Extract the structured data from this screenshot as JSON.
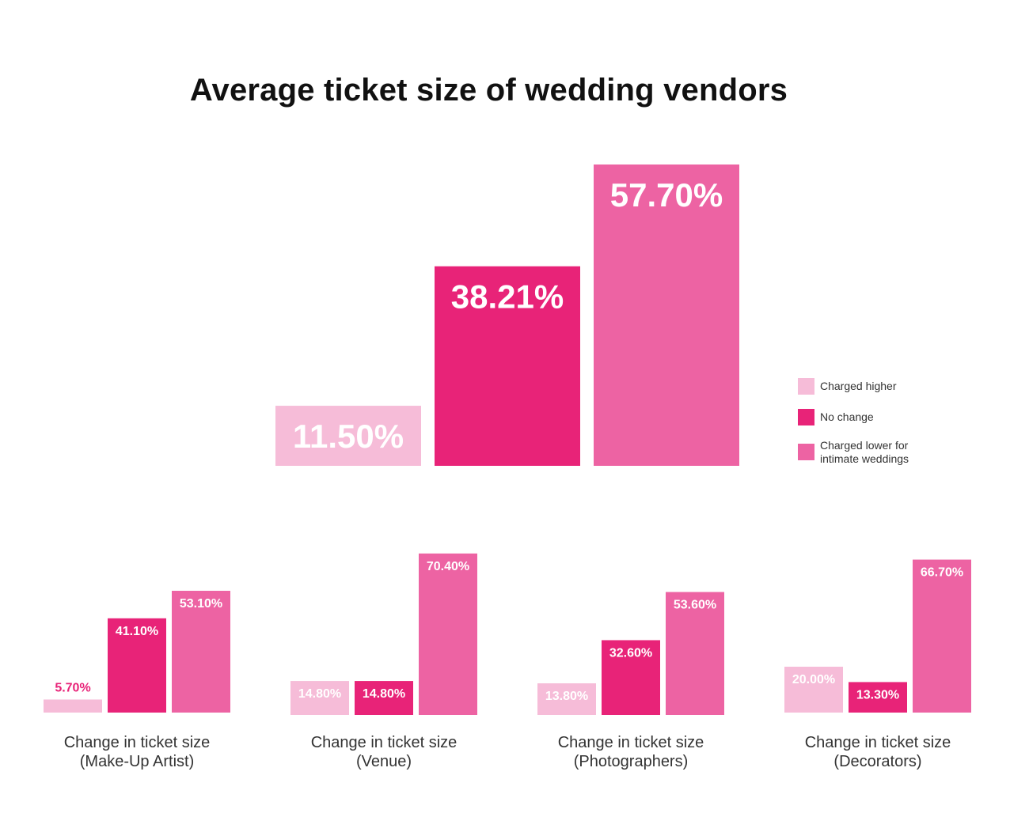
{
  "colors": {
    "charged_higher": "#f6bcd8",
    "no_change": "#e82378",
    "charged_lower": "#ed63a3",
    "label_on_bar": "#ffffff",
    "label_above_bar": "#e82378"
  },
  "chart_data": [
    {
      "type": "bar",
      "id": "overall",
      "title": "Average ticket size of wedding vendors",
      "categories": [
        "Charged higher",
        "No change",
        "Charged lower for intimate weddings"
      ],
      "values": [
        11.5,
        38.21,
        57.7
      ],
      "labels": [
        "11.50%",
        "38.21%",
        "57.70%"
      ],
      "ylim": [
        0,
        57.7
      ],
      "legend": {
        "position": "right",
        "entries": [
          "Charged higher",
          "No change",
          "Charged lower for\nintimate weddings"
        ]
      }
    },
    {
      "type": "bar",
      "id": "makeup",
      "caption": [
        "Change in ticket size",
        "(Make-Up Artist)"
      ],
      "categories": [
        "Charged higher",
        "No change",
        "Charged lower for intimate weddings"
      ],
      "values": [
        5.7,
        41.1,
        53.1
      ],
      "labels": [
        "5.70%",
        "41.10%",
        "53.10%"
      ]
    },
    {
      "type": "bar",
      "id": "venue",
      "caption": [
        "Change in ticket size",
        "(Venue)"
      ],
      "categories": [
        "Charged higher",
        "No change",
        "Charged lower for intimate weddings"
      ],
      "values": [
        14.8,
        14.8,
        70.4
      ],
      "labels": [
        "14.80%",
        "14.80%",
        "70.40%"
      ]
    },
    {
      "type": "bar",
      "id": "photographers",
      "caption": [
        "Change in ticket size",
        "(Photographers)"
      ],
      "categories": [
        "Charged higher",
        "No change",
        "Charged lower for intimate weddings"
      ],
      "values": [
        13.8,
        32.6,
        53.6
      ],
      "labels": [
        "13.80%",
        "32.60%",
        "53.60%"
      ]
    },
    {
      "type": "bar",
      "id": "decorators",
      "caption": [
        "Change in ticket size",
        "(Decorators)"
      ],
      "categories": [
        "Charged higher",
        "No change",
        "Charged lower for intimate weddings"
      ],
      "values": [
        20.0,
        13.3,
        66.7
      ],
      "labels": [
        "20.00%",
        "13.30%",
        "66.70%"
      ]
    }
  ]
}
